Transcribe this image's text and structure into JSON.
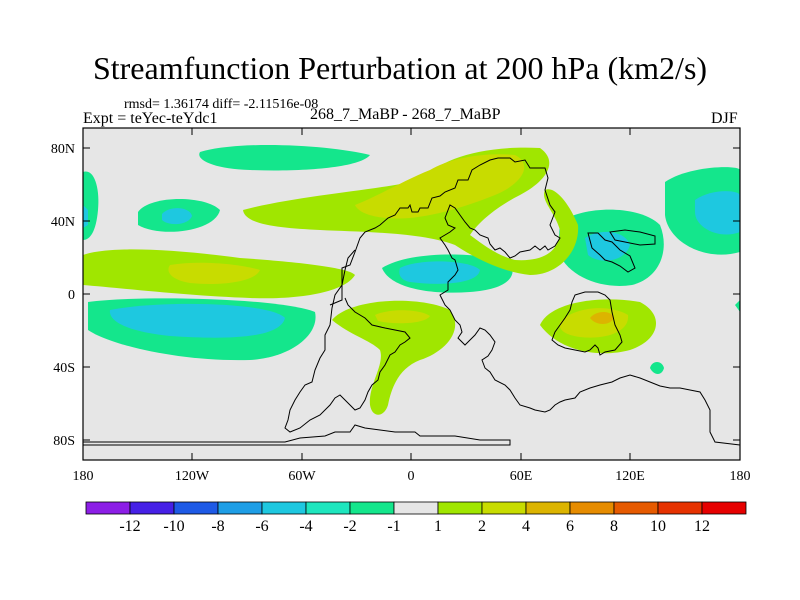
{
  "title": "Streamfunction Perturbation at 200 hPa (km2/s)",
  "stats": "rmsd= 1.36174 diff= -2.11516e-08",
  "expt": "Expt = teYec-teYdc1",
  "subtitle": "268_7_MaBP - 268_7_MaBP",
  "season": "DJF",
  "lat_ticks": [
    "80N",
    "40N",
    "0",
    "40S",
    "80S"
  ],
  "lon_ticks": [
    "180",
    "120W",
    "60W",
    "0",
    "60E",
    "120E",
    "180"
  ],
  "colorbar": {
    "labels": [
      "-12",
      "-10",
      "-8",
      "-6",
      "-4",
      "-2",
      "-1",
      "1",
      "2",
      "4",
      "6",
      "8",
      "10",
      "12"
    ],
    "colors": [
      "#8c1ee6",
      "#4620e6",
      "#1e5ae6",
      "#1e9ee6",
      "#1ec8e0",
      "#1ee6be",
      "#14e68c",
      "#e6e6e6",
      "#a0e600",
      "#c8dc00",
      "#dcb400",
      "#e68c00",
      "#e65a00",
      "#e63200",
      "#e60000"
    ]
  },
  "colors": {
    "background": "#e6e6e6",
    "neg_light": "#14e68c",
    "neg_mid": "#1ec8e0",
    "pos_light": "#a0e600",
    "pos_mid": "#c8dc00",
    "pos_high": "#dcb400"
  }
}
